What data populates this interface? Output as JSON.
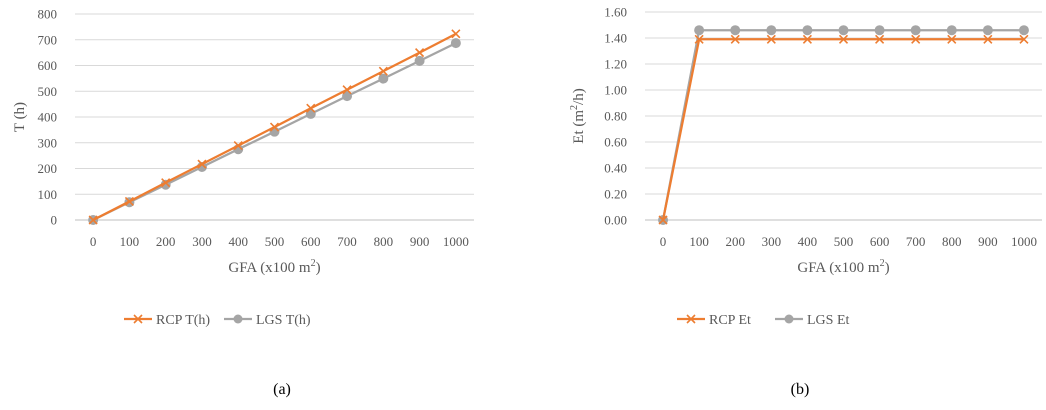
{
  "colors": {
    "rcp": "#ED7D31",
    "lgs": "#A5A5A5",
    "grid": "#D9D9D9",
    "text": "#595959"
  },
  "chart_data": [
    {
      "type": "line",
      "panel_label": "(a)",
      "categories": [
        "0",
        "100",
        "200",
        "300",
        "400",
        "500",
        "600",
        "700",
        "800",
        "900",
        "1000"
      ],
      "xlabel": "GFA (x100 m",
      "xlabel_sup": "2",
      "xlabel_tail": ")",
      "ylabel": "T (h)",
      "ylim": [
        0,
        800
      ],
      "yticks": [
        "0",
        "100",
        "200",
        "300",
        "400",
        "500",
        "600",
        "700",
        "800"
      ],
      "grid": true,
      "legend": "bottom",
      "series": [
        {
          "name": "RCP T(h)",
          "marker": "x",
          "values": [
            0,
            72,
            145,
            217,
            289,
            361,
            434,
            506,
            578,
            650,
            723
          ]
        },
        {
          "name": "LGS T(h)",
          "marker": "circle",
          "values": [
            0,
            69,
            137,
            206,
            275,
            343,
            412,
            481,
            549,
            618,
            687
          ]
        }
      ]
    },
    {
      "type": "line",
      "panel_label": "(b)",
      "categories": [
        "0",
        "100",
        "200",
        "300",
        "400",
        "500",
        "600",
        "700",
        "800",
        "900",
        "1000"
      ],
      "xlabel": "GFA (x100 m",
      "xlabel_sup": "2",
      "xlabel_tail": ")",
      "ylabel": "Et (m",
      "ylabel_sup": "2",
      "ylabel_tail": "/h)",
      "ylim": [
        0,
        1.6
      ],
      "yticks": [
        "0.00",
        "0.20",
        "0.40",
        "0.60",
        "0.80",
        "1.00",
        "1.20",
        "1.40",
        "1.60"
      ],
      "grid": true,
      "legend": "bottom",
      "series": [
        {
          "name": "RCP Et",
          "marker": "x",
          "values": [
            0,
            1.39,
            1.39,
            1.39,
            1.39,
            1.39,
            1.39,
            1.39,
            1.39,
            1.39,
            1.39
          ]
        },
        {
          "name": "LGS Et",
          "marker": "circle",
          "values": [
            0,
            1.46,
            1.46,
            1.46,
            1.46,
            1.46,
            1.46,
            1.46,
            1.46,
            1.46,
            1.46
          ]
        }
      ]
    }
  ]
}
